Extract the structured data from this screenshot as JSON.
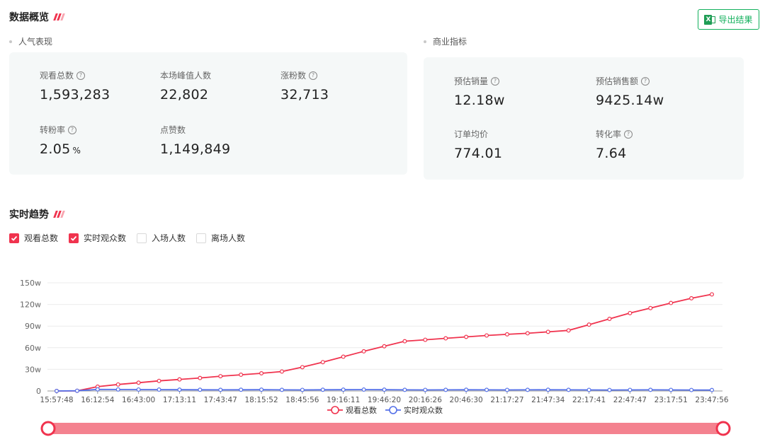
{
  "overview": {
    "title": "数据概览",
    "export_label": "导出结果",
    "popularity": {
      "title": "人气表现",
      "metrics": [
        {
          "label": "观看总数",
          "value": "1,593,283",
          "help": true
        },
        {
          "label": "本场峰值人数",
          "value": "22,802",
          "help": false
        },
        {
          "label": "涨粉数",
          "value": "32,713",
          "help": true
        },
        {
          "label": "转粉率",
          "value": "2.05",
          "unit": "%",
          "help": true
        },
        {
          "label": "点赞数",
          "value": "1,149,849",
          "help": false
        }
      ]
    },
    "business": {
      "title": "商业指标",
      "metrics": [
        {
          "label": "预估销量",
          "value": "12.18w",
          "help": true
        },
        {
          "label": "预估销售额",
          "value": "9425.14w",
          "help": true
        },
        {
          "label": "订单均价",
          "value": "774.01",
          "help": false
        },
        {
          "label": "转化率",
          "value": "7.64",
          "help": true
        }
      ]
    }
  },
  "trend": {
    "title": "实时趋势",
    "toggles": [
      {
        "label": "观看总数",
        "checked": true
      },
      {
        "label": "实时观众数",
        "checked": true
      },
      {
        "label": "入场人数",
        "checked": false
      },
      {
        "label": "离场人数",
        "checked": false
      }
    ]
  },
  "colors": {
    "accent": "#f0334e",
    "blue": "#5470e8",
    "green": "#12b05c",
    "slider": "#f4828f"
  },
  "chart_data": {
    "type": "line",
    "x_ticks": [
      "15:57:48",
      "16:12:54",
      "16:43:00",
      "17:13:11",
      "17:43:47",
      "18:15:52",
      "18:45:56",
      "19:16:11",
      "19:46:20",
      "20:16:26",
      "20:46:30",
      "21:17:27",
      "21:47:34",
      "22:17:41",
      "22:47:47",
      "23:17:51",
      "23:47:56"
    ],
    "y_ticks": [
      "0",
      "30w",
      "60w",
      "90w",
      "120w",
      "150w"
    ],
    "ylim": [
      0,
      150
    ],
    "y_unit": "w",
    "series": [
      {
        "name": "观看总数",
        "color": "#f0334e",
        "values": [
          0,
          0.2,
          6,
          9,
          11.5,
          14,
          16,
          18,
          20.5,
          22.5,
          24.5,
          27,
          33,
          40,
          47.5,
          55,
          62,
          69,
          71,
          73,
          75,
          77,
          78.5,
          80,
          82,
          84,
          92,
          100,
          108,
          115,
          122,
          128.5,
          134
        ]
      },
      {
        "name": "实时观众数",
        "color": "#5470e8",
        "values": [
          0,
          0.3,
          2.2,
          2.1,
          2,
          1.9,
          1.8,
          1.7,
          1.6,
          1.7,
          1.8,
          1.6,
          1.5,
          1.7,
          1.8,
          1.9,
          1.8,
          1.6,
          1.5,
          1.6,
          1.7,
          1.6,
          1.5,
          1.6,
          1.7,
          1.6,
          1.5,
          1.4,
          1.5,
          1.6,
          1.5,
          1.4,
          1.3
        ]
      }
    ],
    "legend_position": "bottom",
    "grid": true,
    "data_zoom": {
      "start": 0,
      "end": 100
    }
  }
}
